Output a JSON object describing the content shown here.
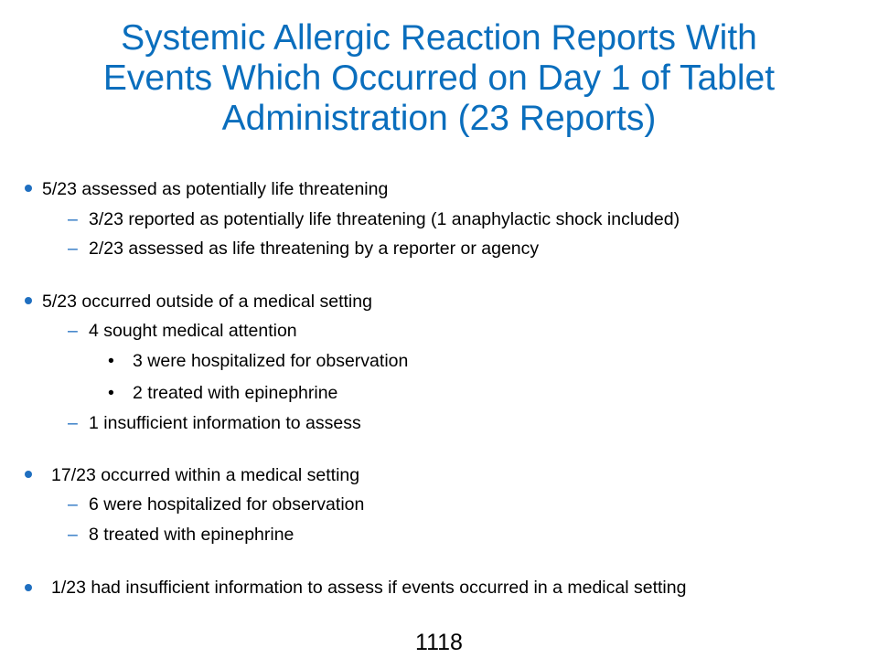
{
  "slide": {
    "title_lines": [
      "Systemic Allergic Reaction Reports With",
      "Events Which Occurred on Day 1 of Tablet",
      "Administration (23 Reports)"
    ],
    "colors": {
      "title": "#0a6ebd",
      "bullet_marker": "#1f6fc0",
      "text": "#000000"
    },
    "bullets": [
      {
        "text": "5/23 assessed as potentially life threatening",
        "children": [
          {
            "text": "3/23 reported as potentially life threatening (1 anaphylactic shock included)"
          },
          {
            "text": "2/23 assessed as life threatening by a reporter or agency"
          }
        ]
      },
      {
        "text": "5/23 occurred outside of a medical setting",
        "children": [
          {
            "text": "4 sought medical attention",
            "children": [
              {
                "text": "3 were hospitalized for observation"
              },
              {
                "text": "2 treated with epinephrine"
              }
            ]
          },
          {
            "text": "1 insufficient information to assess"
          }
        ]
      },
      {
        "text": "17/23 occurred within a medical setting",
        "children": [
          {
            "text": "6 were hospitalized for observation"
          },
          {
            "text": "8 treated with epinephrine"
          }
        ]
      },
      {
        "text": "1/23 had insufficient information to assess if events occurred in a medical setting",
        "children": []
      }
    ],
    "page_number": "1118"
  }
}
